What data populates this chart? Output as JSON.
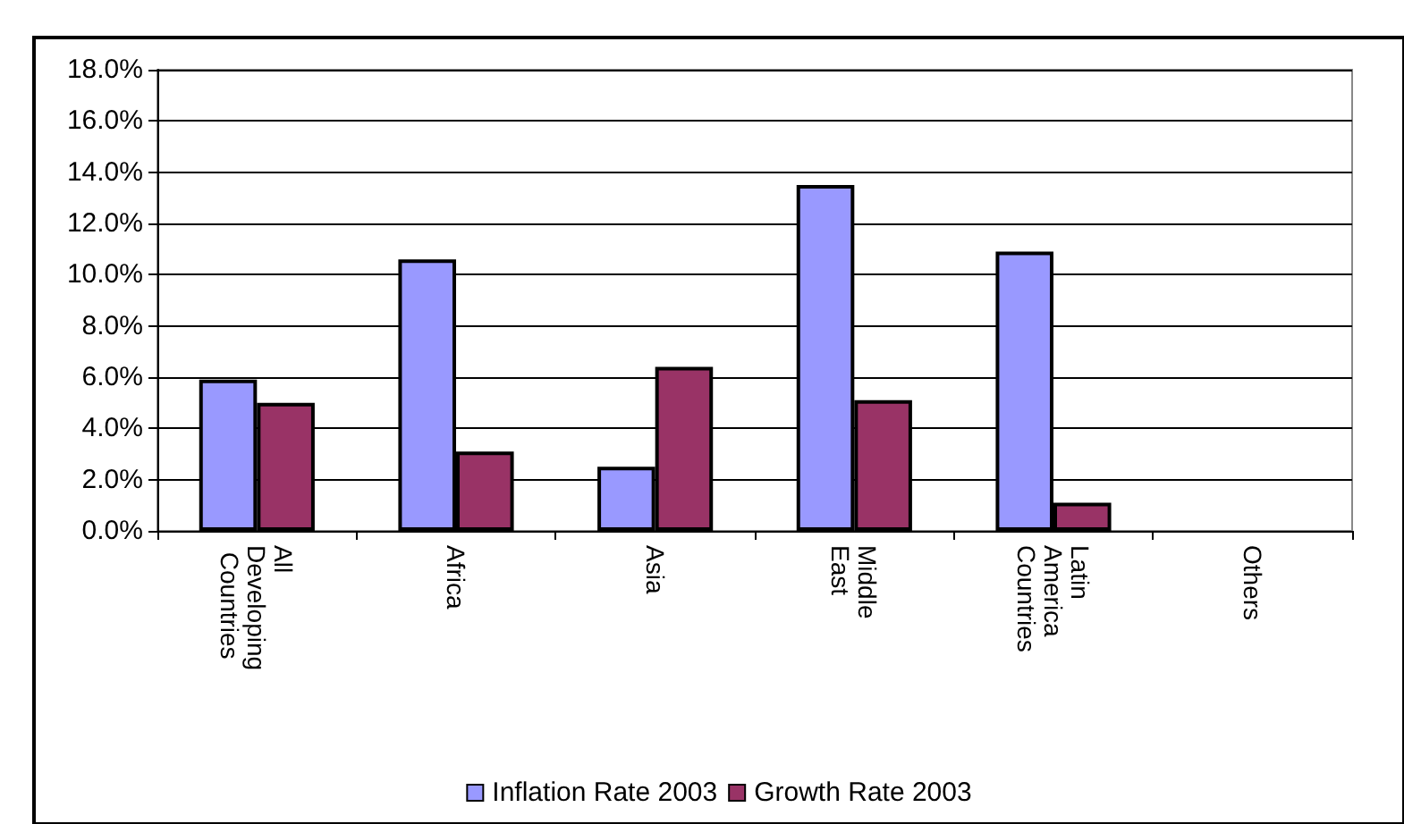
{
  "chart_data": {
    "type": "bar",
    "categories": [
      "All Developing Countries",
      "Africa",
      "Asia",
      "Middle East",
      "Latin America Countries",
      "Others"
    ],
    "series": [
      {
        "name": "Inflation Rate 2003",
        "color": "#9999ff",
        "values": [
          5.9,
          10.6,
          2.5,
          13.5,
          10.9,
          null
        ]
      },
      {
        "name": "Growth Rate 2003",
        "color": "#993366",
        "values": [
          5.0,
          3.1,
          6.4,
          5.1,
          1.1,
          null
        ]
      }
    ],
    "ylim": [
      0,
      18
    ],
    "yticks": [
      {
        "value": 0,
        "label": "0.0%"
      },
      {
        "value": 2,
        "label": "2.0%"
      },
      {
        "value": 4,
        "label": "4.0%"
      },
      {
        "value": 6,
        "label": "6.0%"
      },
      {
        "value": 8,
        "label": "8.0%"
      },
      {
        "value": 10,
        "label": "10.0%"
      },
      {
        "value": 12,
        "label": "12.0%"
      },
      {
        "value": 14,
        "label": "14.0%"
      },
      {
        "value": 16,
        "label": "16.0%"
      },
      {
        "value": 18,
        "label": "18.0%"
      }
    ],
    "grid": "y",
    "legend": "bottom"
  }
}
